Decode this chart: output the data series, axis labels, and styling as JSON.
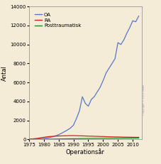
{
  "title": "",
  "ylabel": "Antal",
  "xlabel": "Operationsår",
  "background_color": "#f5ecd7",
  "fig_background": "#f5ecd7",
  "ylim": [
    0,
    14000
  ],
  "xlim": [
    1975,
    2013
  ],
  "yticks": [
    0,
    2000,
    4000,
    6000,
    8000,
    10000,
    12000,
    14000
  ],
  "xticks": [
    1975,
    1980,
    1985,
    1990,
    1995,
    2000,
    2005,
    2010
  ],
  "legend_labels": [
    "OA",
    "RA",
    "Posttraumatisk"
  ],
  "legend_colors": [
    "#5577cc",
    "#cc2222",
    "#228822"
  ],
  "oa_years": [
    1975,
    1976,
    1977,
    1978,
    1979,
    1980,
    1981,
    1982,
    1983,
    1984,
    1985,
    1986,
    1987,
    1988,
    1989,
    1990,
    1991,
    1992,
    1993,
    1994,
    1995,
    1996,
    1997,
    1998,
    1999,
    2000,
    2001,
    2002,
    2003,
    2004,
    2005,
    2006,
    2007,
    2008,
    2009,
    2010,
    2011,
    2012
  ],
  "oa_values": [
    10,
    20,
    30,
    50,
    70,
    100,
    150,
    200,
    280,
    380,
    500,
    650,
    820,
    1000,
    1200,
    1500,
    2200,
    3000,
    4500,
    3800,
    3500,
    4200,
    4500,
    5000,
    5500,
    6200,
    7000,
    7500,
    8000,
    8500,
    10200,
    10000,
    10500,
    11200,
    11800,
    12500,
    12400,
    13000
  ],
  "ra_years": [
    1975,
    1976,
    1977,
    1978,
    1979,
    1980,
    1981,
    1982,
    1983,
    1984,
    1985,
    1986,
    1987,
    1988,
    1989,
    1990,
    1991,
    1992,
    1993,
    1994,
    1995,
    1996,
    1997,
    1998,
    1999,
    2000,
    2001,
    2002,
    2003,
    2004,
    2005,
    2006,
    2007,
    2008,
    2009,
    2010,
    2011,
    2012
  ],
  "ra_values": [
    30,
    50,
    80,
    120,
    180,
    220,
    270,
    300,
    320,
    340,
    360,
    370,
    380,
    390,
    400,
    400,
    390,
    380,
    370,
    360,
    350,
    340,
    330,
    320,
    310,
    300,
    290,
    280,
    270,
    260,
    260,
    250,
    240,
    240,
    230,
    230,
    220,
    220
  ],
  "pt_years": [
    1975,
    1976,
    1977,
    1978,
    1979,
    1980,
    1981,
    1982,
    1983,
    1984,
    1985,
    1986,
    1987,
    1988,
    1989,
    1990,
    1991,
    1992,
    1993,
    1994,
    1995,
    1996,
    1997,
    1998,
    1999,
    2000,
    2001,
    2002,
    2003,
    2004,
    2005,
    2006,
    2007,
    2008,
    2009,
    2010,
    2011,
    2012
  ],
  "pt_values": [
    5,
    8,
    10,
    12,
    15,
    20,
    25,
    30,
    35,
    40,
    50,
    55,
    60,
    65,
    70,
    75,
    80,
    85,
    90,
    95,
    100,
    100,
    105,
    105,
    110,
    110,
    115,
    115,
    120,
    120,
    125,
    125,
    130,
    130,
    130,
    135,
    135,
    140
  ],
  "watermark": "Copyright © 2013 SKAR"
}
